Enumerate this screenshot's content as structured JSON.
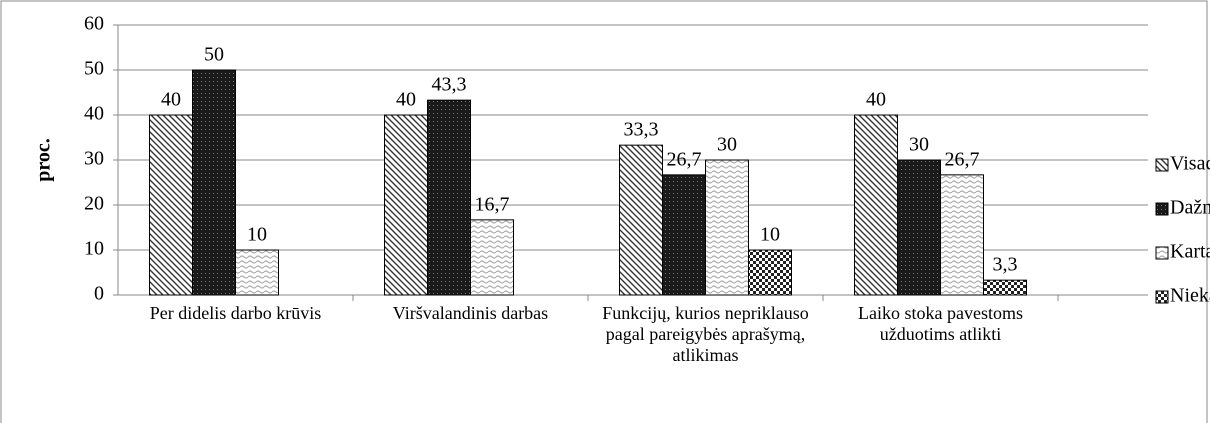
{
  "chart_data": {
    "type": "bar",
    "y_label": "proc.",
    "categories": [
      "Per didelis darbo krūvis",
      "Viršvalandinis darbas",
      "Funkcijų, kurios nepriklauso pagal pareigybės aprašymą, atlikimas",
      "Laiko stoka pavestoms užduotims atlikti"
    ],
    "series": [
      {
        "name": "Visada",
        "color": "#333333",
        "values": [
          40,
          40,
          33.3,
          40
        ],
        "value_labels": [
          "40",
          "40",
          "33,3",
          "40"
        ]
      },
      {
        "name": "Dažnai",
        "color": "#1a1a1a",
        "values": [
          50,
          43.3,
          26.7,
          30
        ],
        "value_labels": [
          "50",
          "43,3",
          "26,7",
          "30"
        ]
      },
      {
        "name": "Kartais",
        "color": "#bbbbbb",
        "values": [
          10,
          16.7,
          30,
          26.7
        ],
        "value_labels": [
          "10",
          "16,7",
          "30",
          "26,7"
        ]
      },
      {
        "name": "Niekada",
        "color": "#222222",
        "values": [
          null,
          null,
          10,
          3.3
        ],
        "value_labels": [
          null,
          null,
          "10",
          "3,3"
        ]
      }
    ],
    "ylim": [
      0,
      60
    ],
    "yticks": [
      0,
      10,
      20,
      30,
      40,
      50,
      60
    ],
    "grid": true,
    "legend": "right"
  }
}
